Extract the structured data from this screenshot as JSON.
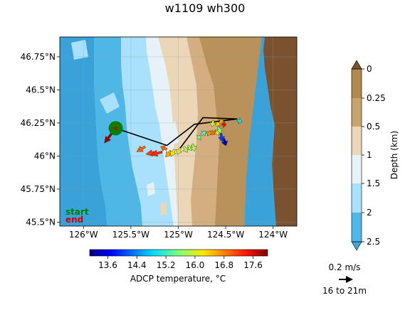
{
  "title": "w1109 wh300",
  "map": {
    "lat_ticks": [
      "46.75°N",
      "46.5°N",
      "46.25°N",
      "46°N",
      "45.75°N",
      "45.5°N"
    ],
    "lon_ticks": [
      "126°W",
      "125.5°W",
      "125°W",
      "124.5°W",
      "124°W"
    ],
    "legend_start": "start",
    "legend_end": "end",
    "legend_start_color": "#008000",
    "legend_end_color": "#d00000"
  },
  "depth_colorbar": {
    "label": "Depth (km)",
    "ticks": [
      "0",
      "0.25",
      "0.5",
      "1",
      "1.5",
      "2",
      "2.5"
    ],
    "colors": [
      "#b38a4e",
      "#c8a46d",
      "#ecd6b8",
      "#e6f2f8",
      "#a9e0fb",
      "#50b8e8"
    ],
    "extend_colors": [
      "#7b5328",
      "#3aa6dd"
    ],
    "land_color": "#7a5230",
    "ocean_color": "#3aa2d8"
  },
  "temp_colorbar": {
    "label": "ADCP temperature, °C",
    "ticks": [
      "13.6",
      "14.4",
      "15.2",
      "16.0",
      "16.8",
      "17.6"
    ],
    "range": [
      13.1,
      18.0
    ]
  },
  "scale": {
    "speed_label": "0.2 m/s",
    "depth_label": "16 to 21m"
  },
  "track": {
    "points": [
      [
        -125.66,
        46.21
      ],
      [
        -125.12,
        46.08
      ],
      [
        -124.83,
        46.24
      ],
      [
        -124.38,
        46.28
      ],
      [
        -124.74,
        46.29
      ],
      [
        -124.98,
        46.06
      ]
    ]
  },
  "chart_data": {
    "type": "map-vectors",
    "title": "w1109 wh300",
    "extent": {
      "lon": [
        -126.25,
        -123.75
      ],
      "lat": [
        45.47,
        46.9
      ]
    },
    "start": {
      "lon": -125.66,
      "lat": 46.21
    },
    "end": {
      "lon": -125.66,
      "lat": 46.21
    },
    "vectors": [
      {
        "lon": -125.66,
        "lat": 46.21,
        "u": -0.16,
        "v": -0.21,
        "temp": 17.9
      },
      {
        "lon": -125.35,
        "lat": 46.07,
        "u": -0.12,
        "v": -0.07,
        "temp": 17.0
      },
      {
        "lon": -125.23,
        "lat": 46.03,
        "u": -0.15,
        "v": -0.03,
        "temp": 17.2
      },
      {
        "lon": -125.17,
        "lat": 46.03,
        "u": -0.16,
        "v": -0.04,
        "temp": 17.3
      },
      {
        "lon": -125.12,
        "lat": 46.05,
        "u": -0.09,
        "v": 0.04,
        "temp": 17.0
      },
      {
        "lon": -125.08,
        "lat": 46.04,
        "u": -0.07,
        "v": -0.09,
        "temp": 16.6
      },
      {
        "lon": -125.04,
        "lat": 46.05,
        "u": -0.05,
        "v": -0.1,
        "temp": 16.2
      },
      {
        "lon": -124.98,
        "lat": 46.06,
        "u": -0.04,
        "v": -0.09,
        "temp": 16.0
      },
      {
        "lon": -124.94,
        "lat": 46.07,
        "u": 0.05,
        "v": -0.08,
        "temp": 15.9
      },
      {
        "lon": -124.9,
        "lat": 46.08,
        "u": 0.06,
        "v": -0.07,
        "temp": 15.7
      },
      {
        "lon": -124.85,
        "lat": 46.09,
        "u": 0.03,
        "v": -0.1,
        "temp": 15.8
      },
      {
        "lon": -124.8,
        "lat": 46.13,
        "u": 0.05,
        "v": 0.04,
        "temp": 15.5
      },
      {
        "lon": -124.76,
        "lat": 46.16,
        "u": 0.07,
        "v": 0.05,
        "temp": 15.3
      },
      {
        "lon": -124.7,
        "lat": 46.18,
        "u": 0.06,
        "v": -0.03,
        "temp": 16.7
      },
      {
        "lon": -124.65,
        "lat": 46.19,
        "u": 0.05,
        "v": -0.05,
        "temp": 16.9
      },
      {
        "lon": -124.6,
        "lat": 46.2,
        "u": 0.03,
        "v": -0.08,
        "temp": 16.2
      },
      {
        "lon": -124.55,
        "lat": 46.17,
        "u": 0.02,
        "v": -0.12,
        "temp": 14.0
      },
      {
        "lon": -124.52,
        "lat": 46.13,
        "u": 0.03,
        "v": -0.1,
        "temp": 13.3
      },
      {
        "lon": -124.6,
        "lat": 46.23,
        "u": 0.05,
        "v": 0.05,
        "temp": 16.3
      },
      {
        "lon": -124.57,
        "lat": 46.25,
        "u": 0.06,
        "v": 0.04,
        "temp": 16.6
      },
      {
        "lon": -124.54,
        "lat": 46.24,
        "u": 0.06,
        "v": -0.01,
        "temp": 17.5
      },
      {
        "lon": -124.63,
        "lat": 46.27,
        "u": -0.02,
        "v": -0.09,
        "temp": 16.0
      },
      {
        "lon": -124.58,
        "lat": 46.22,
        "u": 0.04,
        "v": -0.09,
        "temp": 15.6
      },
      {
        "lon": -124.38,
        "lat": 46.27,
        "u": 0.07,
        "v": -0.02,
        "temp": 14.9
      }
    ]
  }
}
